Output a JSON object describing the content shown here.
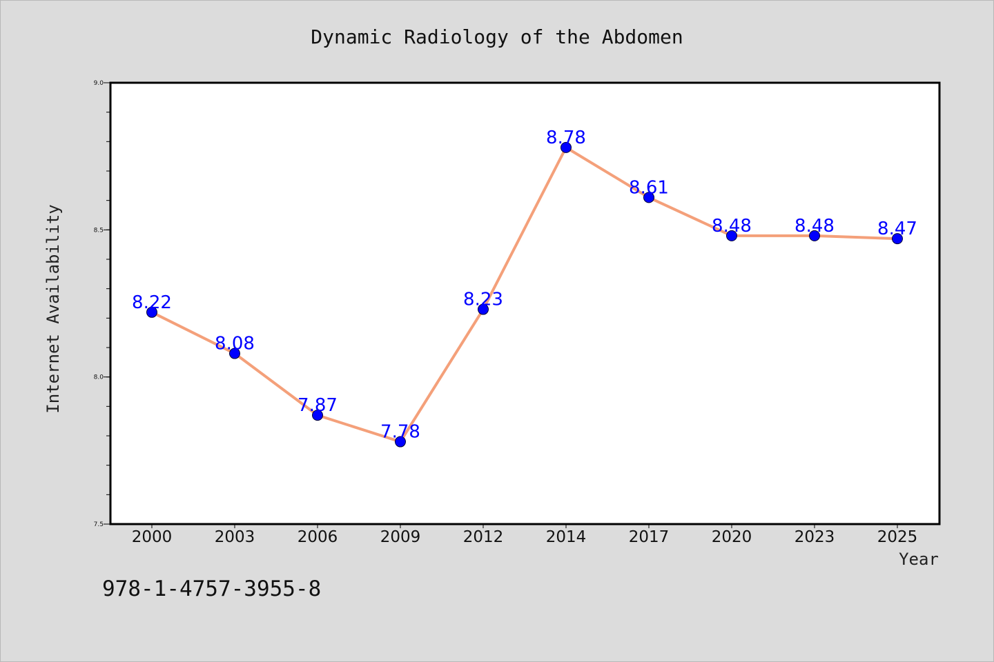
{
  "chart_data": {
    "type": "line",
    "title": "Dynamic Radiology of the Abdomen",
    "xlabel": "Year",
    "ylabel": "Internet Availability",
    "categories": [
      "2000",
      "2003",
      "2006",
      "2009",
      "2012",
      "2014",
      "2017",
      "2020",
      "2023",
      "2025"
    ],
    "series": [
      {
        "values": [
          8.22,
          8.08,
          7.87,
          7.78,
          8.23,
          8.78,
          8.61,
          8.48,
          8.48,
          8.47
        ],
        "line_color": "#f4a07a",
        "marker_color": "#0000ff",
        "label_color": "#0000ff"
      }
    ],
    "data_labels": [
      "8.22",
      "8.08",
      "7.87",
      "7.78",
      "8.23",
      "8.78",
      "8.61",
      "8.48",
      "8.48",
      "8.47"
    ],
    "ylim": [
      7.5,
      9.0
    ],
    "yticks": [
      "7.5",
      "8.0",
      "8.5",
      "9.0"
    ],
    "grid": false,
    "legend": "none"
  },
  "footer": {
    "isbn": "978-1-4757-3955-8"
  },
  "colors": {
    "background": "#dcdcdc",
    "plot_background": "#ffffff",
    "axis": "#000000"
  }
}
